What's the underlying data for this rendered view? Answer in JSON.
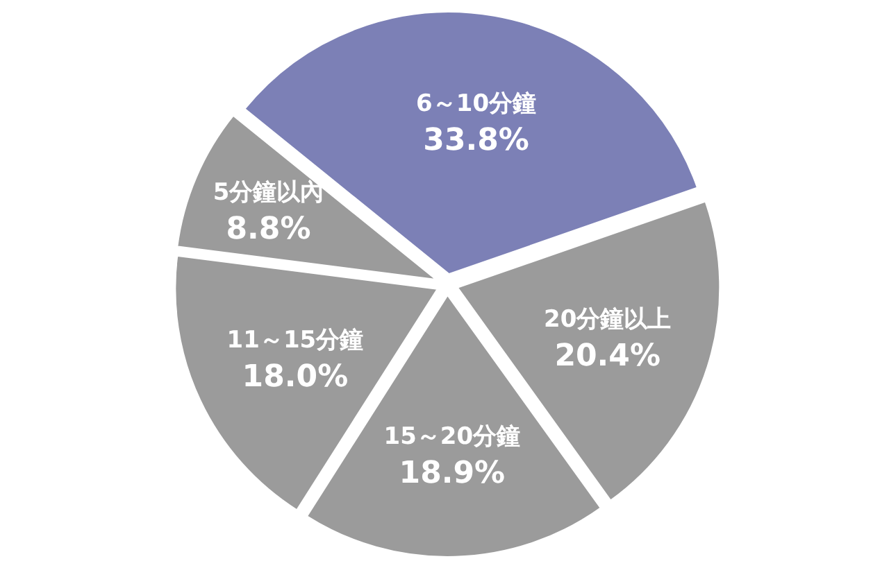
{
  "chart_data": {
    "type": "pie",
    "categories": [
      "6～10分鐘",
      "20分鐘以上",
      "15～20分鐘",
      "11～15分鐘",
      "5分鐘以內"
    ],
    "values": [
      33.8,
      20.4,
      18.9,
      18.0,
      8.8
    ],
    "value_labels": [
      "33.8%",
      "20.4%",
      "18.9%",
      "18.0%",
      "8.8%"
    ],
    "colors": [
      "#7c80b6",
      "#9b9b9b",
      "#9b9b9b",
      "#9b9b9b",
      "#9b9b9b"
    ]
  }
}
